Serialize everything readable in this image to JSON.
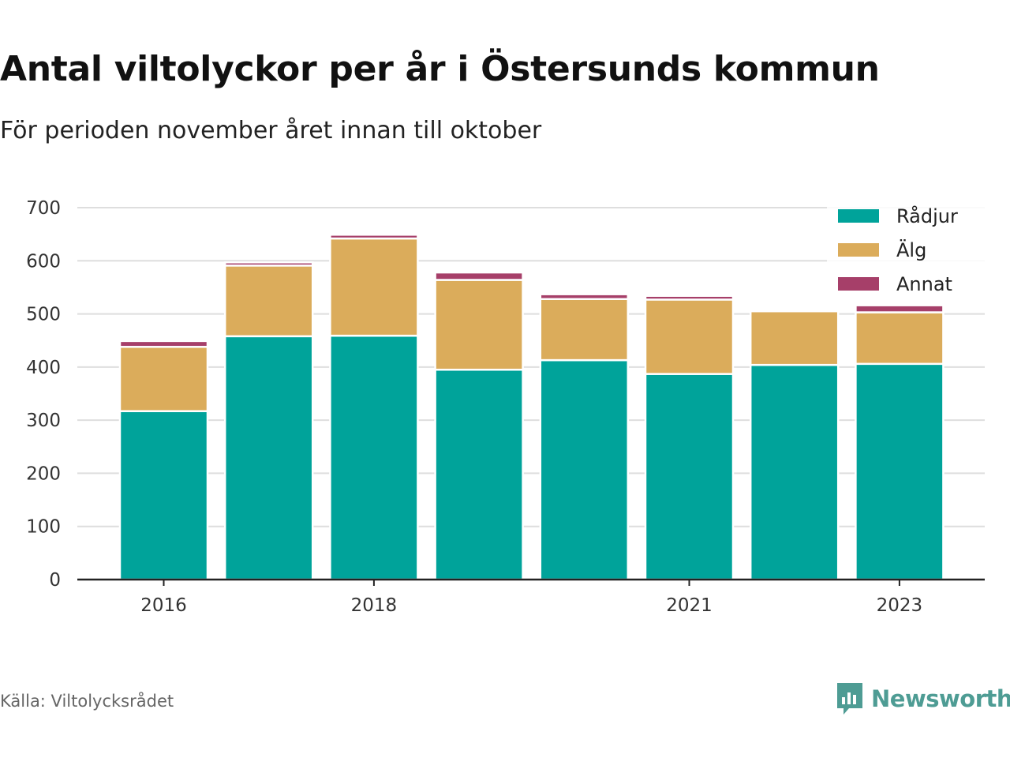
{
  "chart_data": {
    "type": "bar",
    "stacked": true,
    "title": "Antal viltolyckor per år i Östersunds kommun",
    "subtitle": "För perioden november året innan till oktober",
    "categories": [
      "2016",
      "2017",
      "2018",
      "2019",
      "2020",
      "2021",
      "2022",
      "2023"
    ],
    "x_tick_labels": [
      "2016",
      "",
      "2018",
      "",
      "",
      "2021",
      "",
      "2023"
    ],
    "series": [
      {
        "name": "Rådjur",
        "color": "#00a39a",
        "values": [
          317,
          458,
          459,
          395,
          413,
          387,
          404,
          406
        ]
      },
      {
        "name": "Älg",
        "color": "#dbac5b",
        "values": [
          121,
          133,
          183,
          169,
          115,
          140,
          101,
          97
        ]
      },
      {
        "name": "Annat",
        "color": "#a63f69",
        "values": [
          11,
          6,
          7,
          14,
          9,
          7,
          0,
          14
        ]
      }
    ],
    "y_ticks": [
      "0",
      "100",
      "200",
      "300",
      "400",
      "500",
      "600",
      "700"
    ],
    "ylim": [
      0,
      700
    ],
    "xlabel": "",
    "ylabel": "",
    "grid": true,
    "legend_position": "top-right"
  },
  "footer": {
    "source": "Källa: Viltolycksrådet",
    "brand": "Newsworthy",
    "brand_icon": "newsworthy-logo-icon",
    "brand_color": "#4e9c94"
  }
}
